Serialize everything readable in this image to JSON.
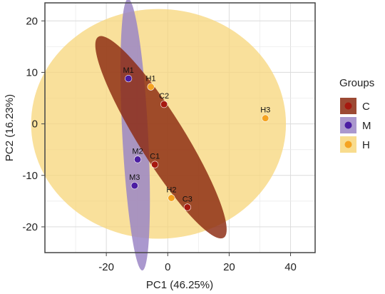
{
  "chart_data": {
    "type": "scatter",
    "xlabel": "PC1 (46.25%)",
    "ylabel": "PC2 (16.23%)",
    "xlim": [
      -40,
      48
    ],
    "ylim": [
      -25,
      23.5
    ],
    "xticks": [
      -20,
      0,
      20,
      40
    ],
    "yticks": [
      -20,
      -10,
      0,
      10,
      20
    ],
    "grid": true,
    "legend": {
      "title": "Groups",
      "position": "right"
    },
    "series": [
      {
        "name": "C",
        "color": "#a6190f",
        "ellipse_color": "#8b2a10",
        "points": [
          {
            "label": "C1",
            "x": -4.2,
            "y": -7.9
          },
          {
            "label": "C2",
            "x": -1.2,
            "y": 3.8
          },
          {
            "label": "C3",
            "x": 6.4,
            "y": -16.2
          }
        ]
      },
      {
        "name": "M",
        "color": "#4b1da3",
        "ellipse_color": "#9b86c6",
        "points": [
          {
            "label": "M1",
            "x": -12.8,
            "y": 8.8
          },
          {
            "label": "M2",
            "x": -9.8,
            "y": -6.9
          },
          {
            "label": "M3",
            "x": -10.8,
            "y": -12.0
          }
        ]
      },
      {
        "name": "H",
        "color": "#f5a321",
        "ellipse_color": "#f7d67a",
        "points": [
          {
            "label": "H1",
            "x": -5.5,
            "y": 7.2
          },
          {
            "label": "H2",
            "x": 1.2,
            "y": -14.4
          },
          {
            "label": "H3",
            "x": 31.8,
            "y": 1.1
          }
        ]
      }
    ],
    "ellipses": [
      {
        "group": "H",
        "cx": -3,
        "cy": 0,
        "rx": 41.5,
        "ry": 22.3,
        "angle": 0
      },
      {
        "group": "M",
        "cx": -10.6,
        "cy": -2.1,
        "rx": 4.2,
        "ry": 26.4,
        "angle": 3
      },
      {
        "group": "C",
        "cx": -2.2,
        "cy": -2.6,
        "rx": 7.5,
        "ry": 23.0,
        "angle": 32
      }
    ]
  }
}
